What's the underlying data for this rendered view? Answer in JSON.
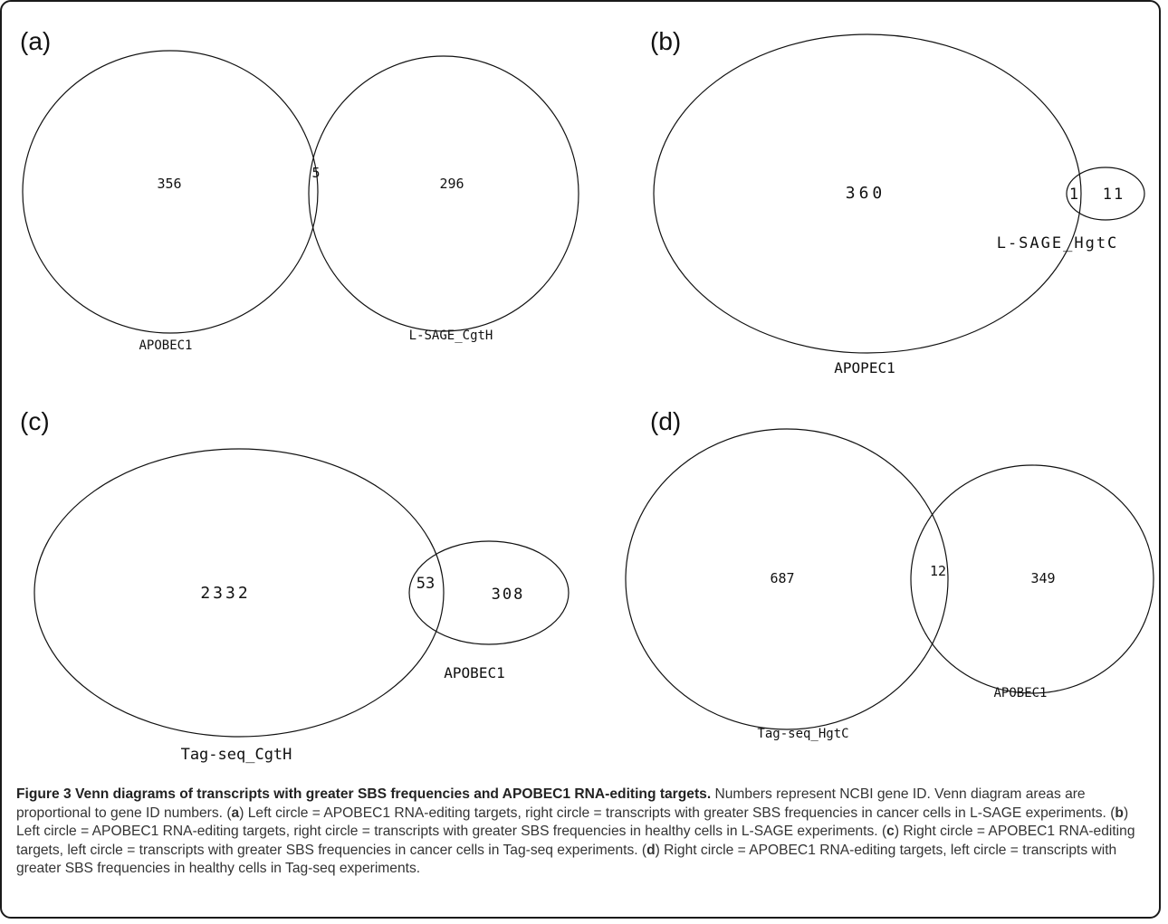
{
  "panels": {
    "a": {
      "label": "(a)",
      "left_set": "APOBEC1",
      "right_set": "L-SAGE_CgtH",
      "left_only": "356",
      "overlap": "5",
      "right_only": "296"
    },
    "b": {
      "label": "(b)",
      "left_set": "APOPEC1",
      "right_set": "L-SAGE_HgtC",
      "left_only": "360",
      "overlap": "1",
      "right_only": "11"
    },
    "c": {
      "label": "(c)",
      "left_set": "Tag-seq_CgtH",
      "right_set": "APOBEC1",
      "left_only": "2332",
      "overlap": "53",
      "right_only": "308"
    },
    "d": {
      "label": "(d)",
      "left_set": "Tag-seq_HgtC",
      "right_set": "APOBEC1",
      "left_only": "687",
      "overlap": "12",
      "right_only": "349"
    }
  },
  "caption": {
    "title": "Figure 3 Venn diagrams of transcripts with greater SBS frequencies and APOBEC1 RNA-editing targets.",
    "intro": "Numbers represent NCBI gene ID. Venn diagram areas are proportional to gene ID numbers.",
    "items": [
      {
        "open": " (",
        "letter": "a",
        "text": ") Left circle = APOBEC1 RNA-editing targets, right circle = transcripts with greater SBS frequencies in cancer cells in L-SAGE experiments."
      },
      {
        "open": " (",
        "letter": "b",
        "text": ") Left circle = APOBEC1 RNA-editing targets, right circle = transcripts with greater SBS frequencies in healthy cells in L-SAGE experiments."
      },
      {
        "open": " (",
        "letter": "c",
        "text": ") Right circle = APOBEC1 RNA-editing targets, left circle = transcripts with greater SBS frequencies in cancer cells in Tag-seq experiments."
      },
      {
        "open": " (",
        "letter": "d",
        "text": ") Right circle = APOBEC1 RNA-editing targets, left circle = transcripts with greater SBS frequencies in healthy cells in Tag-seq experiments."
      }
    ]
  }
}
